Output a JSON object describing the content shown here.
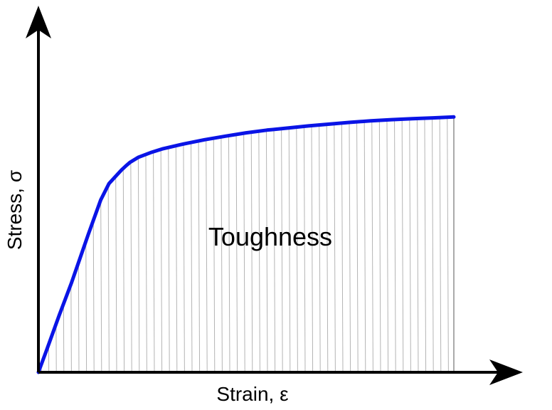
{
  "chart_data": {
    "type": "area",
    "xlabel": "Strain, ε",
    "ylabel": "Stress, σ",
    "annotations": [
      {
        "text": "Toughness"
      }
    ],
    "series": [
      {
        "x": [
          0,
          0.02,
          0.05,
          0.08,
          0.1,
          0.12,
          0.15,
          0.17,
          0.19,
          0.2,
          0.21,
          0.22,
          0.24,
          0.27,
          0.3,
          0.35,
          0.4,
          0.45,
          0.5,
          0.55,
          0.6,
          0.65,
          0.7,
          0.75,
          0.8,
          0.85,
          0.9,
          0.95,
          1.0
        ],
        "y": [
          0,
          0.075,
          0.19,
          0.3,
          0.38,
          0.46,
          0.575,
          0.63,
          0.66,
          0.675,
          0.688,
          0.7,
          0.717,
          0.733,
          0.746,
          0.762,
          0.776,
          0.788,
          0.799,
          0.808,
          0.815,
          0.822,
          0.828,
          0.834,
          0.839,
          0.843,
          0.846,
          0.849,
          0.852
        ]
      }
    ],
    "xlim": [
      0,
      1.1
    ],
    "ylim": [
      0,
      1.1
    ],
    "grid": false,
    "shaded_region": "under-curve",
    "colors": {
      "curve": "#0a14e6",
      "axes": "#000000",
      "hatch": "#b4b4b4",
      "fill_edge": "#555555"
    }
  }
}
